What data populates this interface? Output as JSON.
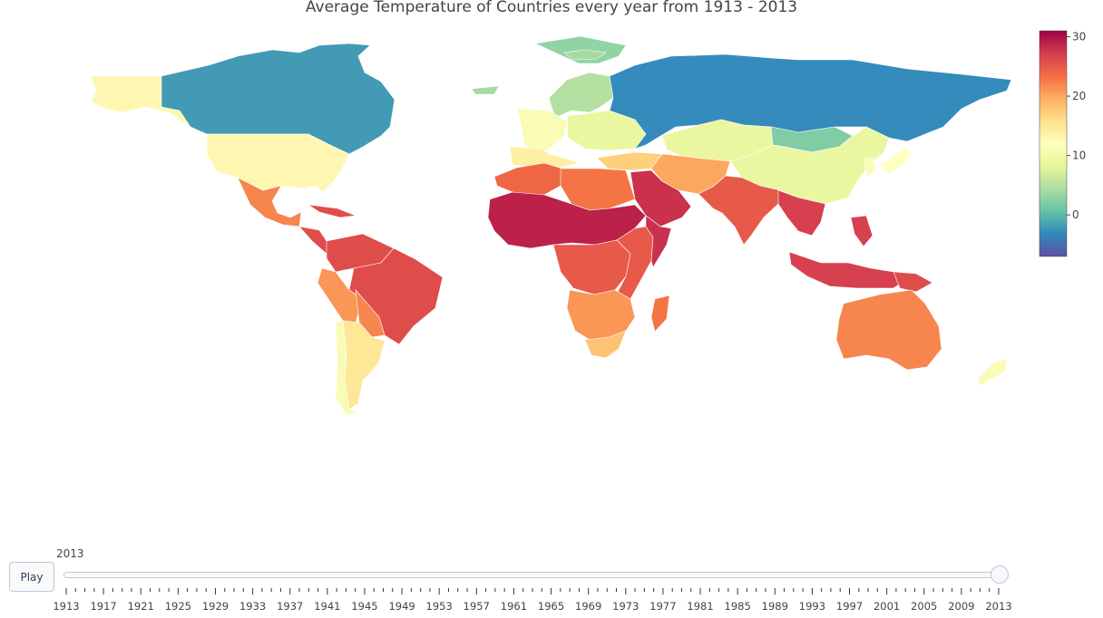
{
  "title": "Average Temperature of Countries every year from 1913 - 2013",
  "colorscale": {
    "name": "Spectral (reversed)",
    "min": -7,
    "max": 31,
    "stops": [
      "#5e4fa2",
      "#3288bd",
      "#66c2a5",
      "#abdda4",
      "#e6f598",
      "#ffffbf",
      "#fee08b",
      "#fdae61",
      "#f46d43",
      "#d53e4f",
      "#9e0142"
    ],
    "ticks": [
      "0",
      "10",
      "20",
      "30"
    ],
    "tick_values": [
      0,
      10,
      20,
      30
    ]
  },
  "slider": {
    "play_label": "Play",
    "current_year": "2013",
    "selected_value": 2013,
    "range": [
      1913,
      2013
    ],
    "labels": [
      "1913",
      "1917",
      "1921",
      "1925",
      "1929",
      "1933",
      "1937",
      "1941",
      "1945",
      "1949",
      "1953",
      "1957",
      "1961",
      "1965",
      "1969",
      "1973",
      "1977",
      "1981",
      "1985",
      "1989",
      "1993",
      "1997",
      "2001",
      "2005",
      "2009",
      "2013"
    ]
  },
  "regions": [
    {
      "name": "Alaska",
      "value": 13
    },
    {
      "name": "Canada",
      "value": -2
    },
    {
      "name": "Greenland",
      "value": 3
    },
    {
      "name": "Iceland",
      "value": 4
    },
    {
      "name": "United States",
      "value": 13
    },
    {
      "name": "Mexico",
      "value": 22
    },
    {
      "name": "Central America",
      "value": 26
    },
    {
      "name": "Cuba",
      "value": 26
    },
    {
      "name": "Venezuela/Colombia",
      "value": 26
    },
    {
      "name": "Brazil",
      "value": 26
    },
    {
      "name": "Peru",
      "value": 21
    },
    {
      "name": "Bolivia/Paraguay",
      "value": 22
    },
    {
      "name": "Argentina",
      "value": 15
    },
    {
      "name": "Chile",
      "value": 11
    },
    {
      "name": "Scandinavia",
      "value": 5
    },
    {
      "name": "Western Europe",
      "value": 11
    },
    {
      "name": "Eastern Europe",
      "value": 9
    },
    {
      "name": "Iberia/Italy",
      "value": 14
    },
    {
      "name": "Russia",
      "value": -3
    },
    {
      "name": "Kazakhstan",
      "value": 9
    },
    {
      "name": "Mongolia",
      "value": 2
    },
    {
      "name": "China",
      "value": 9
    },
    {
      "name": "Turkey/Middle East",
      "value": 17
    },
    {
      "name": "Iran/Afghanistan",
      "value": 20
    },
    {
      "name": "Arabian Peninsula",
      "value": 28
    },
    {
      "name": "North Africa",
      "value": 24
    },
    {
      "name": "Egypt/Libya",
      "value": 23
    },
    {
      "name": "Sahel West Africa",
      "value": 29
    },
    {
      "name": "Central Africa",
      "value": 25
    },
    {
      "name": "East Africa",
      "value": 25
    },
    {
      "name": "Horn of Africa",
      "value": 28
    },
    {
      "name": "Southern Africa",
      "value": 21
    },
    {
      "name": "South Africa",
      "value": 18
    },
    {
      "name": "Madagascar",
      "value": 23
    },
    {
      "name": "India",
      "value": 25
    },
    {
      "name": "Southeast Asia",
      "value": 27
    },
    {
      "name": "Indonesia",
      "value": 27
    },
    {
      "name": "Philippines",
      "value": 27
    },
    {
      "name": "Papua New Guinea",
      "value": 26
    },
    {
      "name": "Japan",
      "value": 12
    },
    {
      "name": "Korea",
      "value": 11
    },
    {
      "name": "Australia",
      "value": 22
    },
    {
      "name": "New Zealand",
      "value": 11
    },
    {
      "name": "Svalbard",
      "value": 4
    }
  ]
}
